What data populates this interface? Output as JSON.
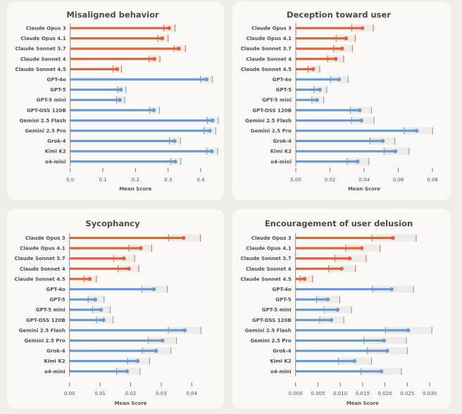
{
  "colors": {
    "anthropic": "#E0613A",
    "other": "#6A99CF",
    "ci_band": "#EDECE8",
    "axis": "#8a8a8a"
  },
  "chart_data": [
    {
      "type": "bar",
      "title": "Misaligned behavior",
      "xlabel": "Mean Score",
      "ylabel": "",
      "xlim": [
        0,
        0.4
      ],
      "xticks": [
        "0.0",
        "0.1",
        "0.2",
        "0.3",
        "0.4"
      ],
      "xtick_values": [
        0,
        0.1,
        0.2,
        0.3,
        0.4
      ],
      "grid": false,
      "categories": [
        "Claude Opus 3",
        "Claude Opus 4.1",
        "Claude Sonnet 3.7",
        "Claude Sonnet 4",
        "Claude Sonnet 4.5",
        "GPT-4o",
        "GPT-5",
        "GPT-5 mini",
        "GPT-OSS 120B",
        "Gemini 2.5 Flash",
        "Gemini 2.5 Pro",
        "Grok-4",
        "Kimi K2",
        "o4-mini"
      ],
      "groups": [
        "anthropic",
        "anthropic",
        "anthropic",
        "anthropic",
        "anthropic",
        "other",
        "other",
        "other",
        "other",
        "other",
        "other",
        "other",
        "other",
        "other"
      ],
      "values": [
        0.303,
        0.282,
        0.333,
        0.258,
        0.144,
        0.418,
        0.155,
        0.152,
        0.256,
        0.436,
        0.428,
        0.32,
        0.434,
        0.322
      ],
      "ci_low": [
        0.287,
        0.268,
        0.318,
        0.242,
        0.131,
        0.399,
        0.145,
        0.142,
        0.243,
        0.42,
        0.41,
        0.304,
        0.418,
        0.308
      ],
      "ci_high": [
        0.321,
        0.3,
        0.353,
        0.275,
        0.157,
        0.436,
        0.171,
        0.167,
        0.274,
        0.454,
        0.446,
        0.338,
        0.452,
        0.339
      ]
    },
    {
      "type": "bar",
      "title": "Deception toward user",
      "xlabel": "Mean Score",
      "ylabel": "",
      "xlim": [
        0,
        0.08
      ],
      "xticks": [
        "0.00",
        "0.02",
        "0.04",
        "0.06",
        "0.08"
      ],
      "xtick_values": [
        0,
        0.02,
        0.04,
        0.06,
        0.08
      ],
      "grid": false,
      "categories": [
        "Claude Opus 3",
        "Claude Opus 4.1",
        "Claude Sonnet 3.7",
        "Claude Sonnet 4",
        "Claude Sonnet 4.5",
        "GPT-4o",
        "GPT-5",
        "GPT-5 mini",
        "GPT-OSS 120B",
        "Gemini 2.5 Flash",
        "Gemini 2.5 Pro",
        "Grok-4",
        "Kimi K2",
        "o4-mini"
      ],
      "groups": [
        "anthropic",
        "anthropic",
        "anthropic",
        "anthropic",
        "anthropic",
        "other",
        "other",
        "other",
        "other",
        "other",
        "other",
        "other",
        "other",
        "other"
      ],
      "values": [
        0.039,
        0.0294,
        0.0271,
        0.0234,
        0.0102,
        0.0253,
        0.014,
        0.0124,
        0.0374,
        0.0384,
        0.0708,
        0.0509,
        0.0583,
        0.0362
      ],
      "ci_low": [
        0.0327,
        0.0236,
        0.0221,
        0.0186,
        0.0071,
        0.0203,
        0.0106,
        0.0094,
        0.0319,
        0.0326,
        0.0634,
        0.0434,
        0.0517,
        0.03
      ],
      "ci_high": [
        0.0454,
        0.0348,
        0.0331,
        0.028,
        0.014,
        0.0306,
        0.0181,
        0.0164,
        0.0443,
        0.0458,
        0.0801,
        0.058,
        0.0663,
        0.0428
      ]
    },
    {
      "type": "bar",
      "title": "Sycophancy",
      "xlabel": "Mean Score",
      "ylabel": "",
      "xlim": [
        0,
        0.04
      ],
      "xticks": [
        "0.00",
        "0.01",
        "0.02",
        "0.03",
        "0.04"
      ],
      "xtick_values": [
        0,
        0.01,
        0.02,
        0.03,
        0.04
      ],
      "grid": false,
      "categories": [
        "Claude Opus 3",
        "Claude Opus 4.1",
        "Claude Sonnet 3.7",
        "Claude Sonnet 4",
        "Claude Sonnet 4.5",
        "GPT-4o",
        "GPT-5",
        "GPT-5 mini",
        "GPT-OSS 120B",
        "Gemini 2.5 Flash",
        "Gemini 2.5 Pro",
        "Grok-4",
        "Kimi K2",
        "o4-mini"
      ],
      "groups": [
        "anthropic",
        "anthropic",
        "anthropic",
        "anthropic",
        "anthropic",
        "other",
        "other",
        "other",
        "other",
        "other",
        "other",
        "other",
        "other",
        "other"
      ],
      "values": [
        0.0373,
        0.0233,
        0.0178,
        0.0194,
        0.0066,
        0.0276,
        0.0084,
        0.0103,
        0.0111,
        0.0377,
        0.0304,
        0.0283,
        0.0223,
        0.0188
      ],
      "ci_low": [
        0.0324,
        0.0194,
        0.0144,
        0.0159,
        0.0047,
        0.0237,
        0.0061,
        0.0075,
        0.0088,
        0.0323,
        0.0257,
        0.0238,
        0.019,
        0.0154
      ],
      "ci_high": [
        0.0428,
        0.0269,
        0.0213,
        0.0227,
        0.0088,
        0.032,
        0.0113,
        0.0133,
        0.0143,
        0.043,
        0.035,
        0.0332,
        0.0262,
        0.0231
      ]
    },
    {
      "type": "bar",
      "title": "Encouragement of user delusion",
      "xlabel": "Mean Score",
      "ylabel": "",
      "xlim": [
        0,
        0.03
      ],
      "xticks": [
        "0.000",
        "0.005",
        "0.010",
        "0.015",
        "0.020",
        "0.025",
        "0.030"
      ],
      "xtick_values": [
        0,
        0.005,
        0.01,
        0.015,
        0.02,
        0.025,
        0.03
      ],
      "grid": false,
      "categories": [
        "Claude Opus 3",
        "Claude Opus 4.1",
        "Claude Sonnet 3.7",
        "Claude Sonnet 4",
        "Claude Sonnet 4.5",
        "GPT-4o",
        "GPT-5",
        "GPT-5 mini",
        "GPT-OSS 120B",
        "Gemini 2.5 Flash",
        "Gemini 2.5 Pro",
        "Grok-4",
        "Kimi K2",
        "o4-mini"
      ],
      "groups": [
        "anthropic",
        "anthropic",
        "anthropic",
        "anthropic",
        "anthropic",
        "other",
        "other",
        "other",
        "other",
        "other",
        "other",
        "other",
        "other",
        "other"
      ],
      "values": [
        0.0218,
        0.0148,
        0.0121,
        0.0103,
        0.002,
        0.0215,
        0.0072,
        0.0094,
        0.008,
        0.0252,
        0.0198,
        0.0205,
        0.0132,
        0.0192
      ],
      "ci_low": [
        0.0171,
        0.0112,
        0.0088,
        0.0074,
        0.001,
        0.0172,
        0.0047,
        0.0064,
        0.0054,
        0.0201,
        0.0153,
        0.016,
        0.0096,
        0.0146
      ],
      "ci_high": [
        0.027,
        0.0189,
        0.0158,
        0.0134,
        0.0038,
        0.0264,
        0.0099,
        0.0125,
        0.0108,
        0.0305,
        0.0248,
        0.025,
        0.017,
        0.0237
      ]
    }
  ]
}
